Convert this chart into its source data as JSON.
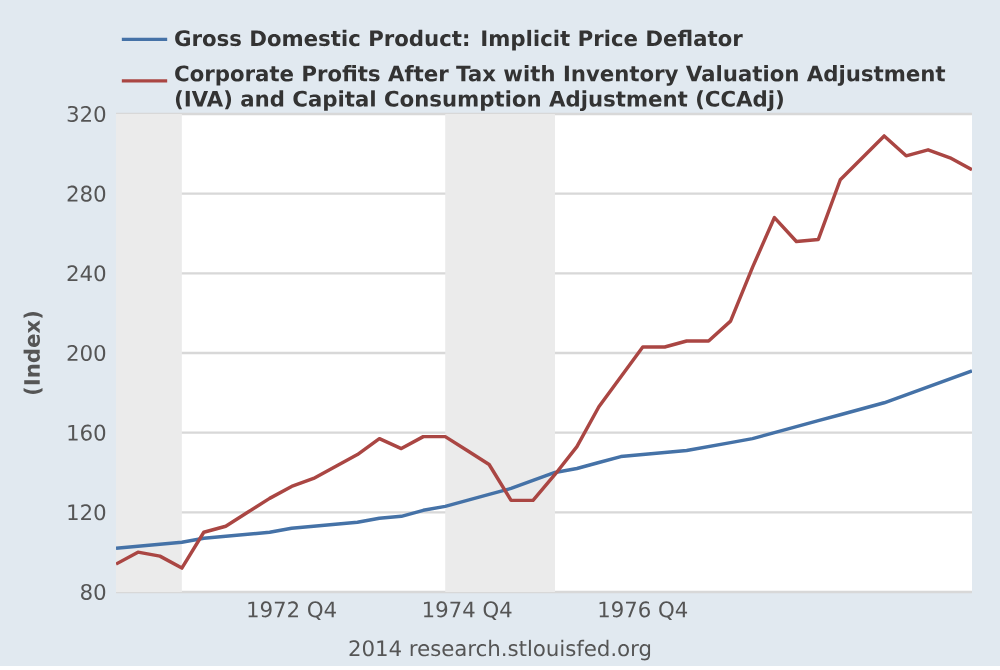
{
  "chart_data": {
    "type": "line",
    "ylabel": "(Index)",
    "annotations": [
      "2014 research.stlouisfed.org"
    ],
    "x": [
      "1970-10",
      "1971-01",
      "1971-04",
      "1971-07",
      "1971-10",
      "1972-01",
      "1972-04",
      "1972-07",
      "1972-10",
      "1973-01",
      "1973-04",
      "1973-07",
      "1973-10",
      "1974-01",
      "1974-04",
      "1974-07",
      "1974-10",
      "1975-01",
      "1975-04",
      "1975-07",
      "1975-10",
      "1976-01",
      "1976-04",
      "1976-07",
      "1976-10",
      "1977-01",
      "1977-04",
      "1977-07",
      "1977-10",
      "1978-01",
      "1978-04",
      "1978-07",
      "1978-10",
      "1979-01",
      "1979-04",
      "1979-07",
      "1979-10",
      "1980-01",
      "1980-04",
      "1980-07"
    ],
    "series": [
      {
        "name": "Gross Domestic Product: Implicit Price Deflator",
        "color": "#4572a7",
        "values": [
          102,
          103,
          104,
          105,
          107,
          108,
          109,
          110,
          112,
          113,
          114,
          115,
          117,
          118,
          121,
          123,
          126,
          129,
          132,
          136,
          140,
          142,
          145,
          148,
          149,
          150,
          151,
          153,
          155,
          157,
          160,
          163,
          166,
          169,
          172,
          175,
          179,
          183,
          187,
          191
        ]
      },
      {
        "name": "Corporate Profits After Tax with Inventory Valuation Adjustment (IVA) and Capital Consumption Adjustment (CCAdj)",
        "color": "#aa4643",
        "values": [
          94,
          100,
          98,
          92,
          110,
          113,
          120,
          127,
          133,
          137,
          143,
          149,
          157,
          152,
          158,
          158,
          151,
          144,
          126,
          126,
          139,
          153,
          173,
          188,
          203,
          203,
          206,
          206,
          216,
          243,
          268,
          256,
          257,
          287,
          298,
          309,
          299,
          302,
          298,
          292
        ]
      }
    ],
    "xlim": [
      "1970-10",
      "1980-07"
    ],
    "xticks": [
      {
        "value": "1972-10",
        "label": "1972 Q4"
      },
      {
        "value": "1974-10",
        "label": "1974 Q4"
      },
      {
        "value": "1976-10",
        "label": "1976 Q4"
      }
    ],
    "ylim": [
      80,
      320
    ],
    "yticks": [
      80,
      120,
      160,
      200,
      240,
      280,
      320
    ],
    "bands": [
      {
        "axis": "x",
        "from": "1970-10",
        "to": "1971-07",
        "color": "#ebebeb"
      },
      {
        "axis": "x",
        "from": "1974-07",
        "to": "1975-10",
        "color": "#ebebeb"
      }
    ],
    "grid": "y",
    "legend": "top",
    "marker": "none",
    "line_style": "solid"
  }
}
